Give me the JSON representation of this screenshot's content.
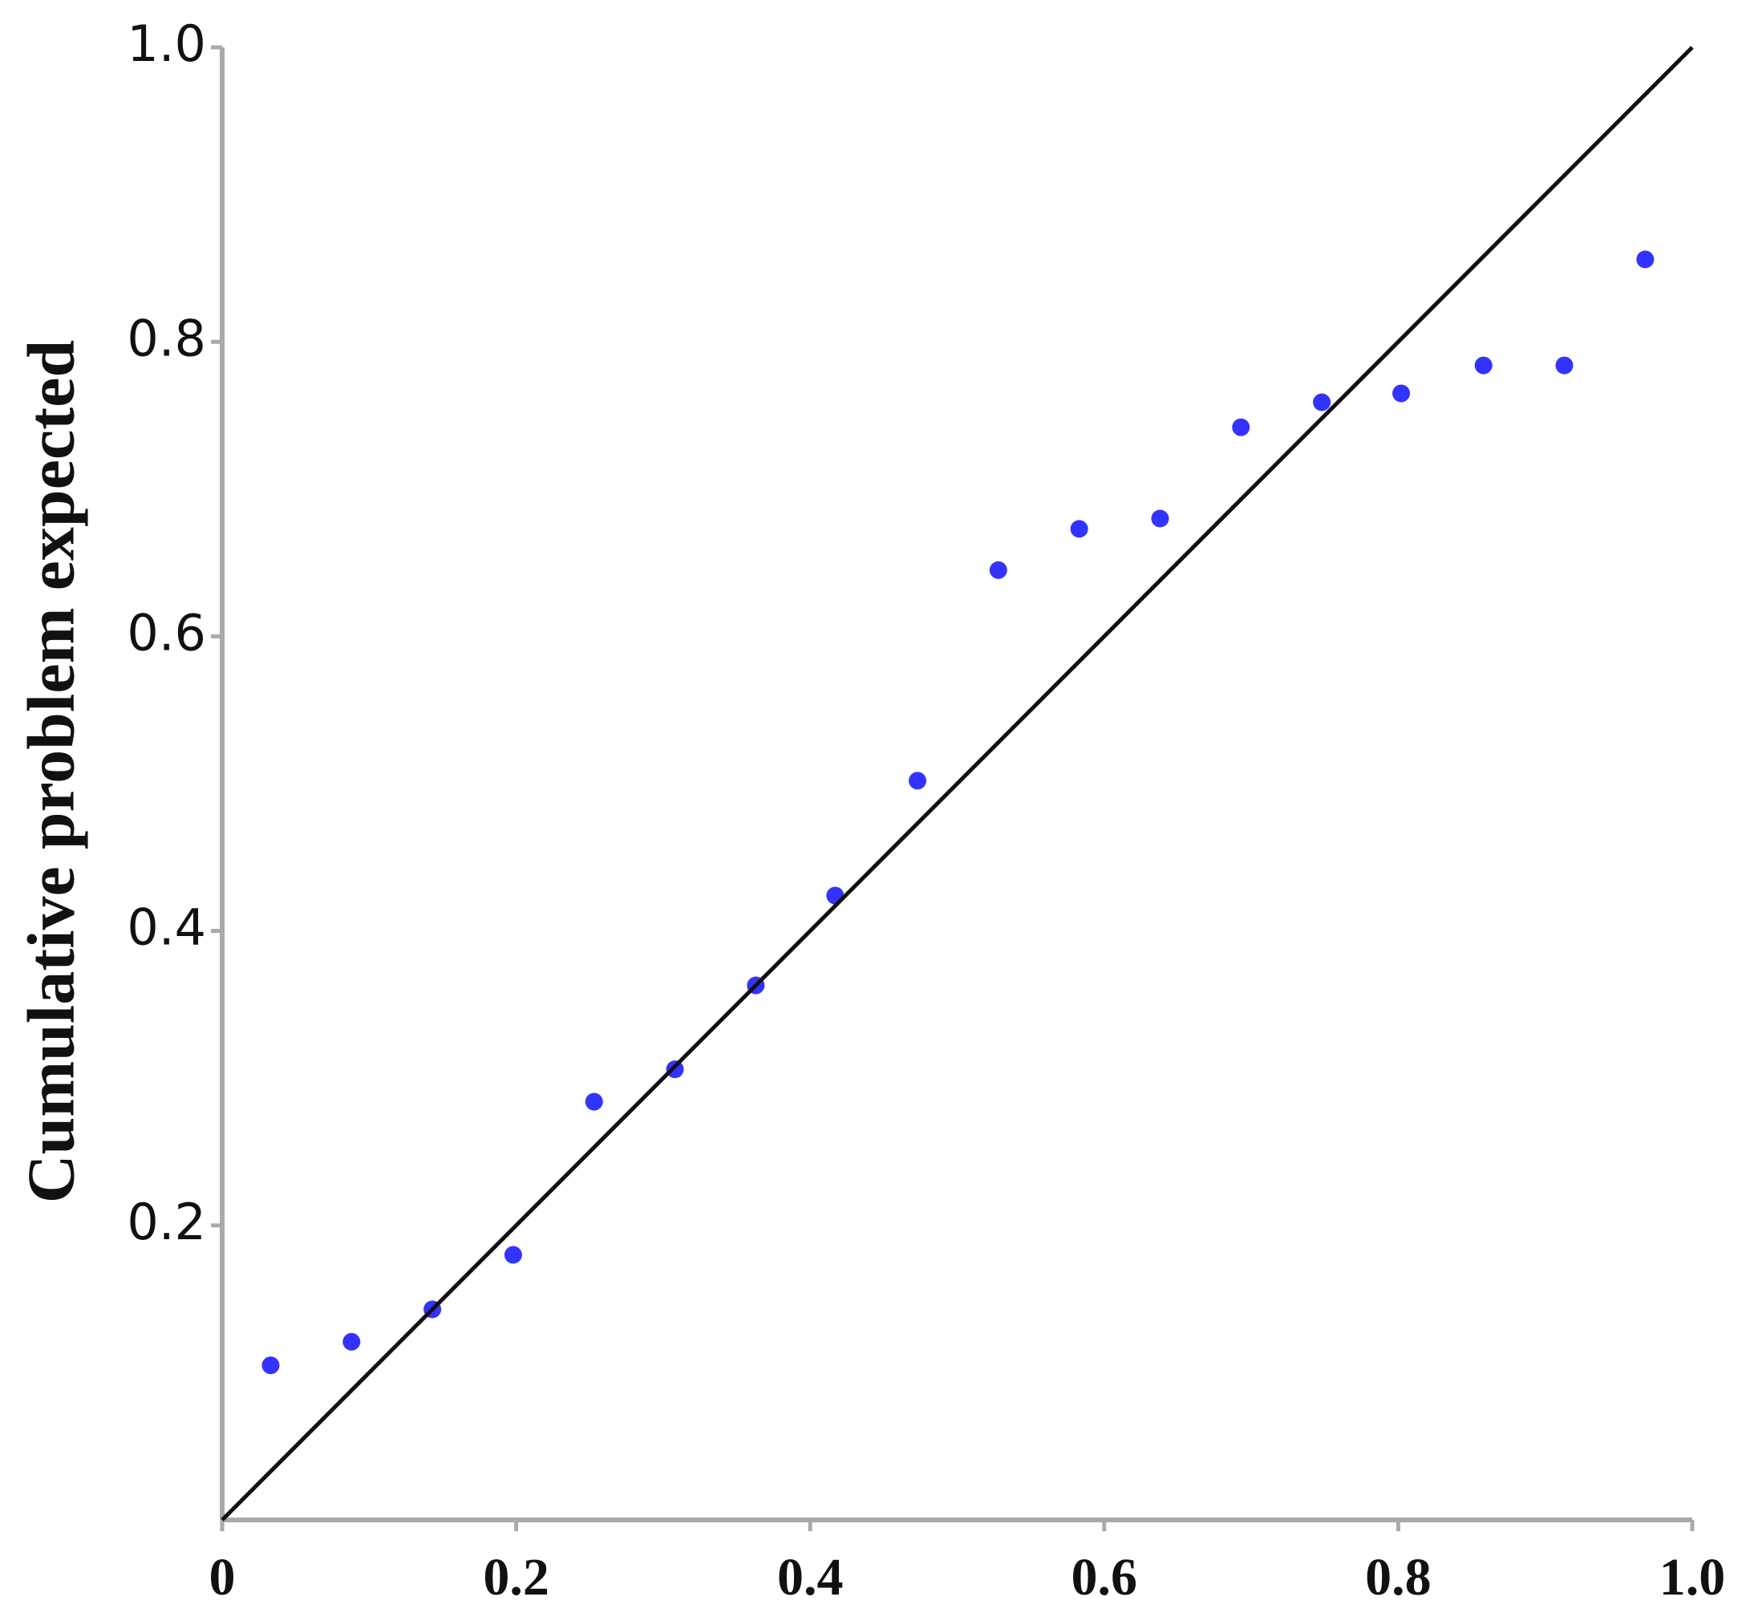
{
  "chart_data": {
    "type": "scatter",
    "ylabel": "Cumulative problem expected",
    "xlim": [
      0,
      1
    ],
    "ylim": [
      0,
      1
    ],
    "xticks": [
      0,
      0.2,
      0.4,
      0.6,
      0.8,
      {
        "value": 1,
        "label": "1.0"
      }
    ],
    "yticks": [
      0.2,
      0.4,
      0.6,
      0.8,
      {
        "value": 1,
        "label": "1.0"
      }
    ],
    "series": [
      {
        "type": "scatter",
        "color": "#3333ff",
        "x": [
          0.033,
          0.088,
          0.143,
          0.198,
          0.253,
          0.308,
          0.363,
          0.417,
          0.473,
          0.528,
          0.583,
          0.638,
          0.693,
          0.748,
          0.802,
          0.858,
          0.913,
          0.968
        ],
        "values": [
          0.105,
          0.121,
          0.143,
          0.18,
          0.284,
          0.306,
          0.363,
          0.424,
          0.502,
          0.645,
          0.673,
          0.68,
          0.742,
          0.759,
          0.765,
          0.784,
          0.784,
          0.856
        ]
      },
      {
        "type": "line",
        "color": "#111111",
        "x": [
          0,
          1
        ],
        "values": [
          0,
          1
        ]
      }
    ]
  }
}
